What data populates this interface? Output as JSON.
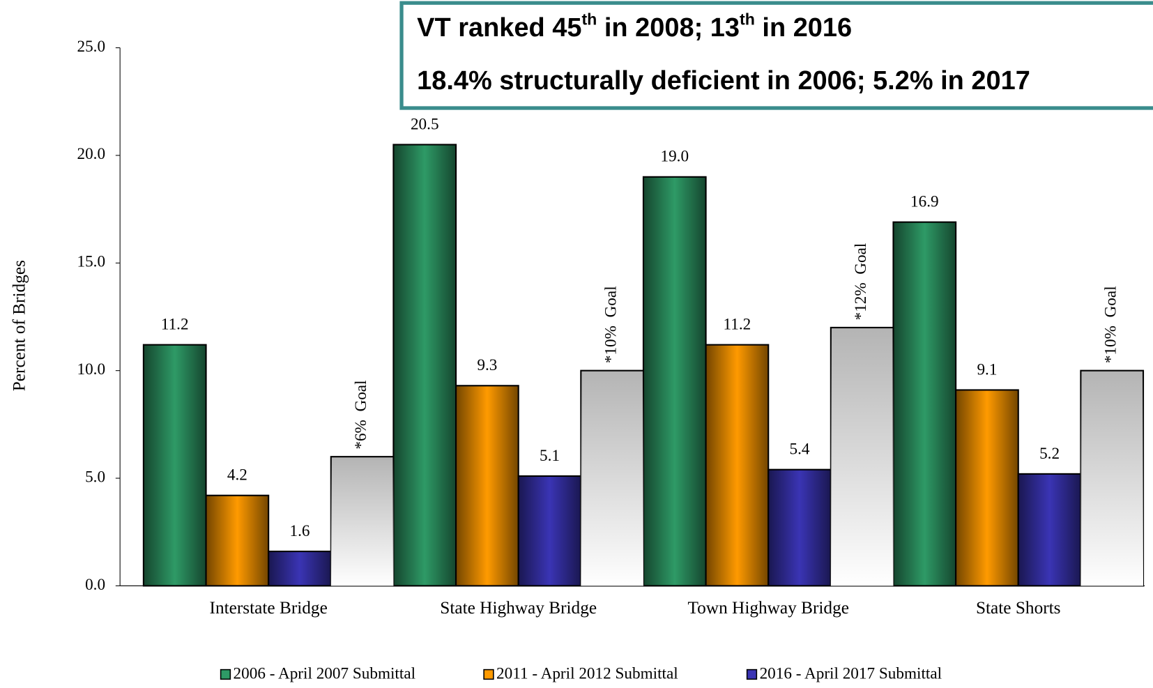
{
  "chart_data": {
    "type": "bar",
    "y_label": "Percent of Bridges",
    "annotations": [
      [
        "VT ranked 45",
        "th",
        " in 2008; 13",
        "th",
        " in 2016"
      ],
      "18.4% structurally deficient in 2006; 5.2% in 2017"
    ],
    "categories": [
      "Interstate Bridge",
      "State Highway Bridge",
      "Town Highway Bridge",
      "State Shorts"
    ],
    "series": [
      {
        "name": "2006 - April 2007 Submittal",
        "color": "#2e9a66",
        "values": [
          11.2,
          20.5,
          19.0,
          16.9
        ],
        "value_labels": [
          "11.2",
          "20.5",
          "19.0",
          "16.9"
        ]
      },
      {
        "name": "2011 - April 2012 Submittal",
        "color": "#ff9a00",
        "values": [
          4.2,
          9.3,
          11.2,
          9.1
        ]
      },
      {
        "name": "2016 - April 2017 Submittal",
        "color": "#3a34b4",
        "values": [
          1.6,
          5.1,
          5.4,
          5.2
        ]
      },
      {
        "color": "#b4b4b4",
        "values": [
          6,
          10,
          12,
          10
        ],
        "value_labels": [
          "*6%  Goal",
          "*10%  Goal",
          "*12%  Goal",
          "*10%  Goal"
        ]
      }
    ],
    "ylim": [
      0,
      25
    ],
    "yticks": [
      {
        "value": 0,
        "label": "0.0"
      },
      {
        "value": 5,
        "label": "5.0"
      },
      {
        "value": 10,
        "label": "10.0"
      },
      {
        "value": 15,
        "label": "15.0"
      },
      {
        "value": 20,
        "label": "20.0"
      },
      {
        "value": 25,
        "label": "25.0"
      }
    ],
    "grid": false
  }
}
